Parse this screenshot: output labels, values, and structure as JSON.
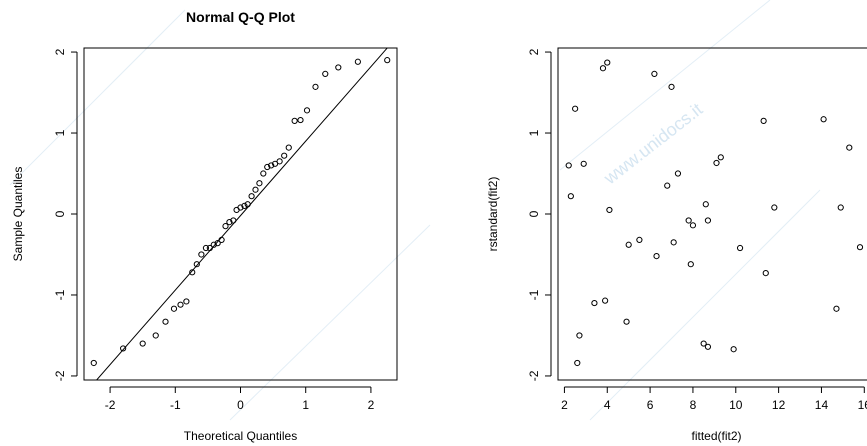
{
  "watermark": {
    "text": "www.unidocs.it"
  },
  "chart_data": [
    {
      "id": "qq",
      "type": "scatter",
      "title": "Normal Q-Q Plot",
      "xlabel": "Theoretical Quantiles",
      "ylabel": "Sample Quantiles",
      "xlim": [
        -2.4,
        2.4
      ],
      "ylim": [
        -2.05,
        2.05
      ],
      "xticks": [
        -2,
        -1,
        0,
        1,
        2
      ],
      "yticks": [
        -2,
        -1,
        0,
        1,
        2
      ],
      "xtick_labels": [
        "-2",
        "-1",
        "0",
        "1",
        "2"
      ],
      "ytick_labels": [
        "-2",
        "-1",
        "0",
        "1",
        "2"
      ],
      "grid": false,
      "reference_line": {
        "intercept": -0.02,
        "slope": 0.92
      },
      "points": {
        "x": [
          -2.25,
          -1.8,
          -1.5,
          -1.3,
          -1.15,
          -1.02,
          -0.92,
          -0.83,
          -0.74,
          -0.67,
          -0.6,
          -0.53,
          -0.47,
          -0.41,
          -0.35,
          -0.29,
          -0.23,
          -0.17,
          -0.11,
          -0.06,
          0.0,
          0.06,
          0.11,
          0.17,
          0.23,
          0.29,
          0.35,
          0.41,
          0.47,
          0.53,
          0.6,
          0.67,
          0.74,
          0.83,
          0.92,
          1.02,
          1.15,
          1.3,
          1.5,
          1.8,
          2.25
        ],
        "y": [
          -1.84,
          -1.66,
          -1.6,
          -1.5,
          -1.33,
          -1.17,
          -1.12,
          -1.08,
          -0.72,
          -0.62,
          -0.5,
          -0.42,
          -0.42,
          -0.38,
          -0.36,
          -0.32,
          -0.15,
          -0.1,
          -0.08,
          0.05,
          0.08,
          0.1,
          0.12,
          0.22,
          0.3,
          0.38,
          0.5,
          0.58,
          0.6,
          0.62,
          0.65,
          0.72,
          0.82,
          1.15,
          1.16,
          1.28,
          1.57,
          1.73,
          1.81,
          1.88,
          1.9
        ]
      }
    },
    {
      "id": "resid",
      "type": "scatter",
      "title": "",
      "xlabel": "fitted(fit2)",
      "ylabel": "rstandard(fit2)",
      "xlim": [
        1.7,
        16.5
      ],
      "ylim": [
        -2.05,
        2.05
      ],
      "xticks": [
        2,
        4,
        6,
        8,
        10,
        12,
        14,
        16
      ],
      "yticks": [
        -2,
        -1,
        0,
        1,
        2
      ],
      "xtick_labels": [
        "2",
        "4",
        "6",
        "8",
        "10",
        "12",
        "14",
        "16"
      ],
      "ytick_labels": [
        "-2",
        "-1",
        "0",
        "1",
        "2"
      ],
      "grid": false,
      "points": {
        "x": [
          2.2,
          2.3,
          2.5,
          2.7,
          2.9,
          2.6,
          3.4,
          3.8,
          4.0,
          4.1,
          3.9,
          4.9,
          5.0,
          5.5,
          6.2,
          6.3,
          6.8,
          7.0,
          7.1,
          7.3,
          7.8,
          8.0,
          7.9,
          8.6,
          8.7,
          8.7,
          8.5,
          9.1,
          9.3,
          9.9,
          10.2,
          11.3,
          11.4,
          11.8,
          14.1,
          14.7,
          14.9,
          15.3,
          15.8
        ],
        "y": [
          0.6,
          0.22,
          1.3,
          -1.5,
          0.62,
          -1.84,
          -1.1,
          1.8,
          1.87,
          0.05,
          -1.07,
          -1.33,
          -0.38,
          -0.32,
          1.73,
          -0.52,
          0.35,
          1.57,
          -0.35,
          0.5,
          -0.08,
          -0.14,
          -0.62,
          0.12,
          -0.08,
          -1.64,
          -1.6,
          0.63,
          0.7,
          -1.67,
          -0.42,
          1.15,
          -0.73,
          0.08,
          1.17,
          -1.17,
          0.08,
          0.82,
          -0.41
        ]
      }
    }
  ]
}
